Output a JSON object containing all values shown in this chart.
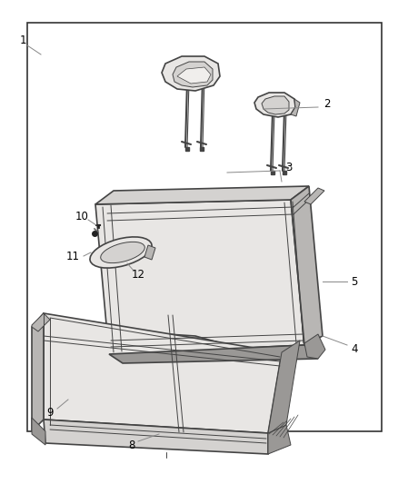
{
  "background_color": "#ffffff",
  "border_color": "#333333",
  "stroke_color": "#444444",
  "fill_light": "#e8e6e4",
  "fill_mid": "#d4d2d0",
  "fill_dark": "#b8b6b4",
  "fill_darker": "#9a9896",
  "label_color": "#000000",
  "fig_width": 4.38,
  "fig_height": 5.33,
  "dpi": 100
}
